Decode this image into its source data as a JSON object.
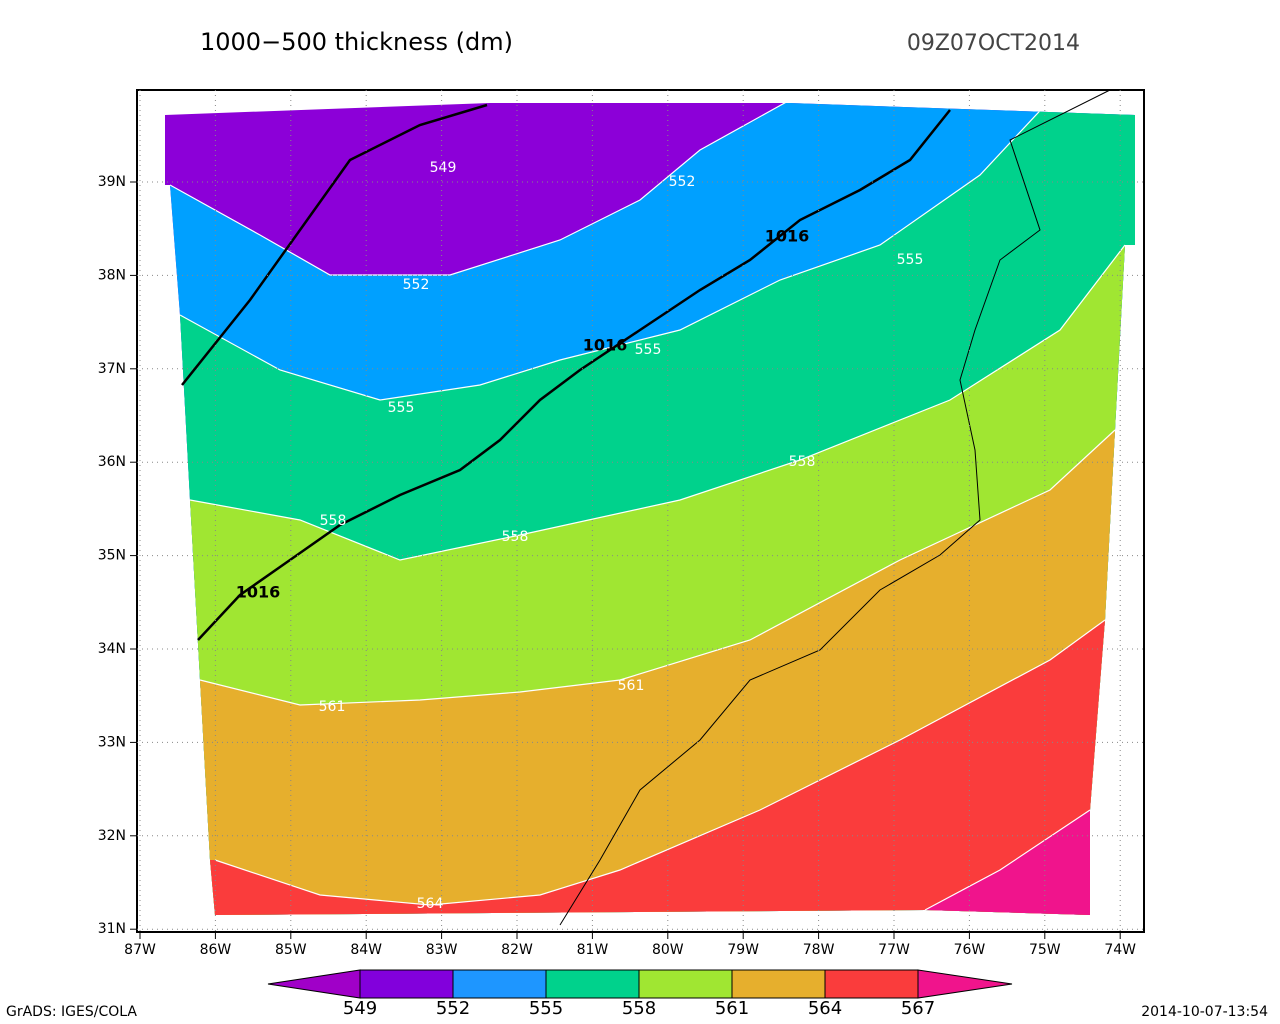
{
  "header": {
    "title": "1000−500 thickness (dm)",
    "valid_time": "09Z07OCT2014"
  },
  "map": {
    "lat_labels": [
      "39N",
      "38N",
      "37N",
      "36N",
      "35N",
      "34N",
      "33N",
      "32N",
      "31N"
    ],
    "lon_labels": [
      "87W",
      "86W",
      "85W",
      "84W",
      "83W",
      "82W",
      "81W",
      "80W",
      "79W",
      "78W",
      "77W",
      "76W",
      "75W",
      "74W"
    ],
    "contour_labels": [
      "549",
      "552",
      "552",
      "555",
      "555",
      "555",
      "558",
      "558",
      "558",
      "561",
      "561",
      "564"
    ],
    "isobar_labels": [
      "1016",
      "1016",
      "1016"
    ]
  },
  "colorbar": {
    "labels": [
      549,
      552,
      555,
      558,
      561,
      564,
      567
    ]
  },
  "footer": {
    "left": "GrADS: IGES/COLA",
    "right": "2014-10-07-13:54"
  }
}
